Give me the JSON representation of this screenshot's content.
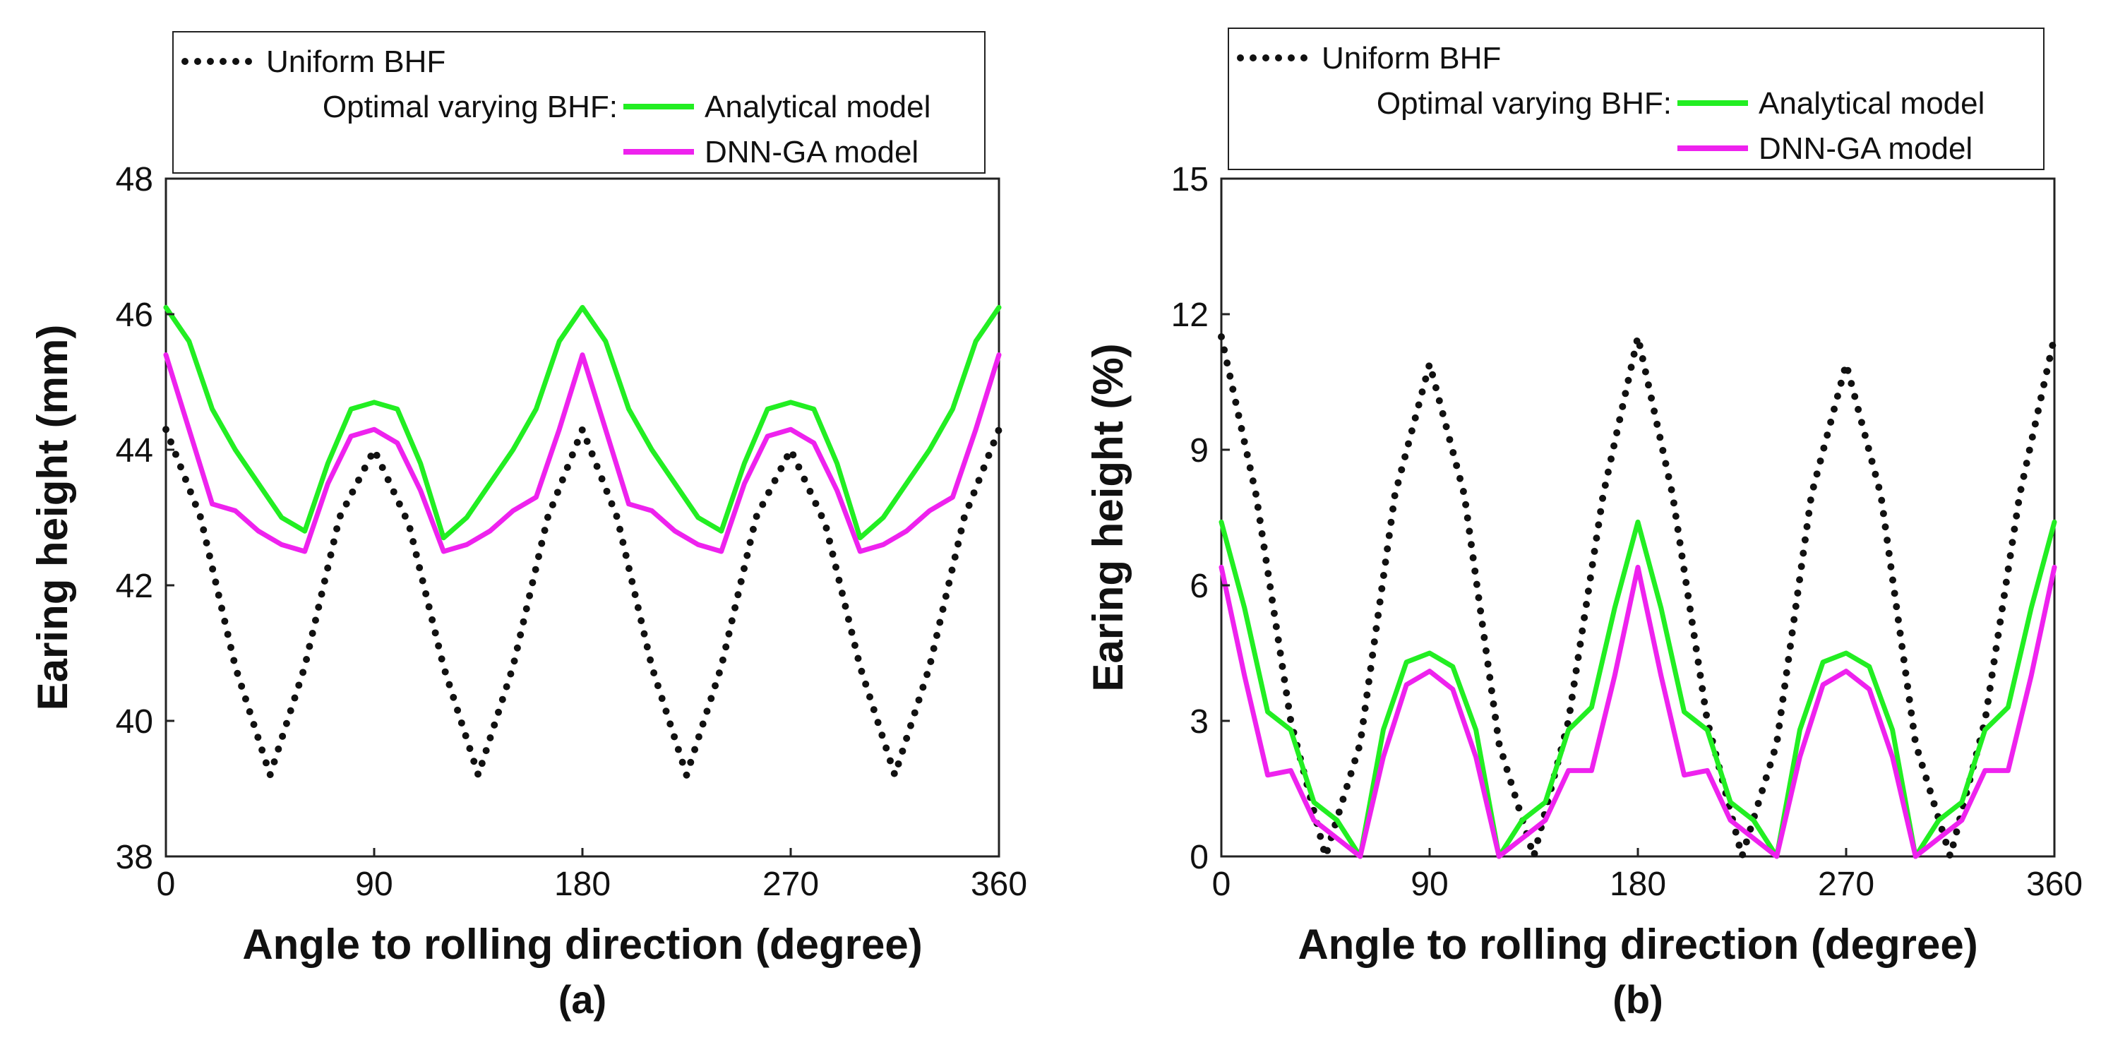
{
  "chart_data": [
    {
      "panel_label": "(a)",
      "type": "line",
      "xlabel": "Angle to rolling direction (degree)",
      "ylabel": "Earing height (mm)",
      "xlim": [
        0,
        360
      ],
      "ylim": [
        38,
        48
      ],
      "xticks": [
        0,
        90,
        180,
        270,
        360
      ],
      "yticks": [
        38,
        40,
        42,
        44,
        46,
        48
      ],
      "legend": {
        "position": "top",
        "group_label": "Optimal varying BHF:",
        "entries": [
          "Uniform BHF",
          "Analytical model",
          "DNN-GA model"
        ]
      },
      "series": [
        {
          "name": "Uniform BHF",
          "style": "dotted",
          "color": "#111111",
          "x": [
            0,
            15,
            30,
            45,
            60,
            75,
            90,
            105,
            120,
            135,
            150,
            165,
            180,
            195,
            210,
            225,
            240,
            255,
            270,
            285,
            300,
            315,
            330,
            345,
            360
          ],
          "y": [
            44.3,
            43.0,
            40.8,
            39.2,
            40.8,
            43.0,
            44.0,
            42.9,
            40.8,
            39.2,
            40.8,
            43.0,
            44.3,
            43.0,
            40.8,
            39.2,
            40.8,
            43.0,
            44.0,
            42.9,
            40.8,
            39.2,
            40.8,
            43.0,
            44.3
          ]
        },
        {
          "name": "Analytical model",
          "style": "solid",
          "color": "#22ee22",
          "x": [
            0,
            10,
            20,
            30,
            40,
            50,
            60,
            70,
            80,
            90,
            100,
            110,
            120,
            130,
            140,
            150,
            160,
            170,
            180,
            190,
            200,
            210,
            220,
            230,
            240,
            250,
            260,
            270,
            280,
            290,
            300,
            310,
            320,
            330,
            340,
            350,
            360
          ],
          "y": [
            46.1,
            45.6,
            44.6,
            44.0,
            43.5,
            43.0,
            42.8,
            43.8,
            44.6,
            44.7,
            44.6,
            43.8,
            42.7,
            43.0,
            43.5,
            44.0,
            44.6,
            45.6,
            46.1,
            45.6,
            44.6,
            44.0,
            43.5,
            43.0,
            42.8,
            43.8,
            44.6,
            44.7,
            44.6,
            43.8,
            42.7,
            43.0,
            43.5,
            44.0,
            44.6,
            45.6,
            46.1
          ]
        },
        {
          "name": "DNN-GA model",
          "style": "solid",
          "color": "#ee22ee",
          "x": [
            0,
            10,
            20,
            30,
            40,
            50,
            60,
            70,
            80,
            90,
            100,
            110,
            120,
            130,
            140,
            150,
            160,
            170,
            180,
            190,
            200,
            210,
            220,
            230,
            240,
            250,
            260,
            270,
            280,
            290,
            300,
            310,
            320,
            330,
            340,
            350,
            360
          ],
          "y": [
            45.4,
            44.3,
            43.2,
            43.1,
            42.8,
            42.6,
            42.5,
            43.5,
            44.2,
            44.3,
            44.1,
            43.4,
            42.5,
            42.6,
            42.8,
            43.1,
            43.3,
            44.3,
            45.4,
            44.3,
            43.2,
            43.1,
            42.8,
            42.6,
            42.5,
            43.5,
            44.2,
            44.3,
            44.1,
            43.4,
            42.5,
            42.6,
            42.8,
            43.1,
            43.3,
            44.3,
            45.4
          ]
        }
      ]
    },
    {
      "panel_label": "(b)",
      "type": "line",
      "xlabel": "Angle to rolling direction (degree)",
      "ylabel": "Earing height (%)",
      "xlim": [
        0,
        360
      ],
      "ylim": [
        0,
        15
      ],
      "xticks": [
        0,
        90,
        180,
        270,
        360
      ],
      "yticks": [
        0,
        3,
        6,
        9,
        12,
        15
      ],
      "legend": {
        "position": "top",
        "group_label": "Optimal varying BHF:",
        "entries": [
          "Uniform BHF",
          "Analytical model",
          "DNN-GA model"
        ]
      },
      "series": [
        {
          "name": "Uniform BHF",
          "style": "dotted",
          "color": "#111111",
          "x": [
            0,
            15,
            30,
            45,
            60,
            75,
            90,
            105,
            120,
            135,
            150,
            165,
            180,
            195,
            210,
            225,
            240,
            255,
            270,
            285,
            300,
            315,
            330,
            345,
            360
          ],
          "y": [
            11.5,
            8.0,
            3.0,
            0.0,
            2.5,
            8.0,
            10.9,
            8.0,
            2.5,
            0.0,
            3.0,
            8.0,
            11.5,
            8.0,
            3.0,
            0.0,
            2.5,
            8.0,
            10.9,
            8.0,
            2.5,
            0.0,
            3.0,
            8.0,
            11.5
          ]
        },
        {
          "name": "Analytical model",
          "style": "solid",
          "color": "#22ee22",
          "x": [
            0,
            10,
            20,
            30,
            40,
            50,
            60,
            70,
            80,
            90,
            100,
            110,
            120,
            130,
            140,
            150,
            160,
            170,
            180,
            190,
            200,
            210,
            220,
            230,
            240,
            250,
            260,
            270,
            280,
            290,
            300,
            310,
            320,
            330,
            340,
            350,
            360
          ],
          "y": [
            7.4,
            5.5,
            3.2,
            2.8,
            1.2,
            0.8,
            0.0,
            2.8,
            4.3,
            4.5,
            4.2,
            2.8,
            0.0,
            0.8,
            1.2,
            2.8,
            3.3,
            5.5,
            7.4,
            5.5,
            3.2,
            2.8,
            1.2,
            0.8,
            0.0,
            2.8,
            4.3,
            4.5,
            4.2,
            2.8,
            0.0,
            0.8,
            1.2,
            2.8,
            3.3,
            5.5,
            7.4
          ]
        },
        {
          "name": "DNN-GA model",
          "style": "solid",
          "color": "#ee22ee",
          "x": [
            0,
            10,
            20,
            30,
            40,
            50,
            60,
            70,
            80,
            90,
            100,
            110,
            120,
            130,
            140,
            150,
            160,
            170,
            180,
            190,
            200,
            210,
            220,
            230,
            240,
            250,
            260,
            270,
            280,
            290,
            300,
            310,
            320,
            330,
            340,
            350,
            360
          ],
          "y": [
            6.4,
            4.0,
            1.8,
            1.9,
            0.8,
            0.4,
            0.0,
            2.2,
            3.8,
            4.1,
            3.7,
            2.2,
            0.0,
            0.4,
            0.8,
            1.9,
            1.9,
            4.0,
            6.4,
            4.0,
            1.8,
            1.9,
            0.8,
            0.4,
            0.0,
            2.2,
            3.8,
            4.1,
            3.7,
            2.2,
            0.0,
            0.4,
            0.8,
            1.9,
            1.9,
            4.0,
            6.4
          ]
        }
      ]
    }
  ]
}
